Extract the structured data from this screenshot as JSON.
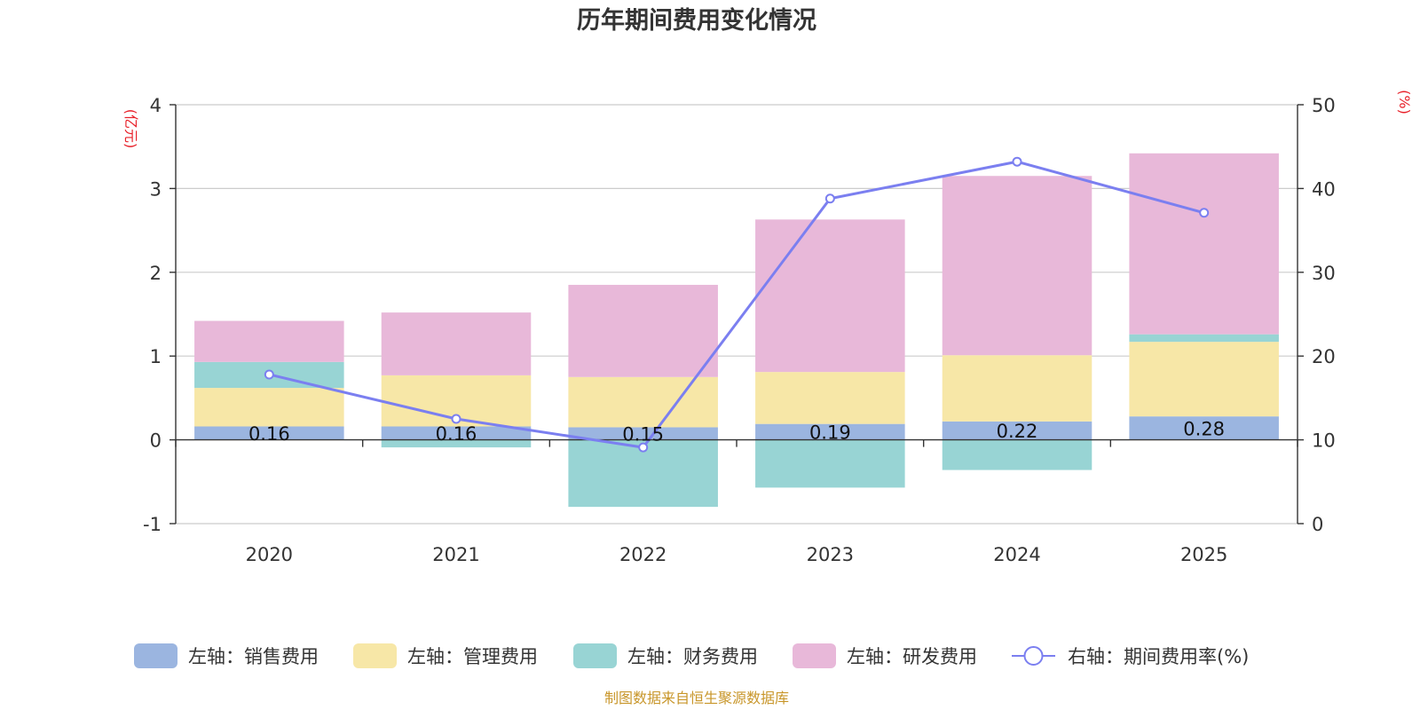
{
  "chart_data": {
    "type": "bar",
    "title": "历年期间费用变化情况",
    "categories": [
      "2020",
      "2021",
      "2022",
      "2023",
      "2024",
      "2025"
    ],
    "left_axis": {
      "unit_label": "(亿元)",
      "ylim": [
        -1,
        4
      ],
      "ticks": [
        "4",
        "3",
        "2",
        "1",
        "0",
        "-1"
      ],
      "tick_values": [
        4,
        3,
        2,
        1,
        0,
        -1
      ]
    },
    "right_axis": {
      "unit_label": "(%)",
      "ylim": [
        0,
        50
      ],
      "ticks": [
        "50",
        "40",
        "30",
        "20",
        "10",
        "0"
      ],
      "tick_values": [
        50,
        40,
        30,
        20,
        10,
        0
      ]
    },
    "series": [
      {
        "name": "左轴：销售费用",
        "type": "stacked-bar",
        "axis": "left",
        "color": "#9bb5e0",
        "values": [
          0.16,
          0.16,
          0.15,
          0.19,
          0.22,
          0.28
        ],
        "labels": [
          "0.16",
          "0.16",
          "0.15",
          "0.19",
          "0.22",
          "0.28"
        ]
      },
      {
        "name": "左轴：管理费用",
        "type": "stacked-bar",
        "axis": "left",
        "color": "#f7e7a7",
        "values": [
          0.46,
          0.61,
          0.6,
          0.62,
          0.79,
          0.89
        ]
      },
      {
        "name": "左轴：财务费用",
        "type": "stacked-bar",
        "axis": "left",
        "color": "#98d4d4",
        "values": [
          0.31,
          -0.09,
          -0.8,
          -0.57,
          -0.36,
          0.09
        ]
      },
      {
        "name": "左轴：研发费用",
        "type": "stacked-bar",
        "axis": "left",
        "color": "#e8b8d9",
        "values": [
          0.49,
          0.75,
          1.1,
          1.82,
          2.14,
          2.16
        ]
      },
      {
        "name": "右轴：期间费用率(%)",
        "type": "line",
        "axis": "right",
        "color": "#7b7ff0",
        "values": [
          17.8,
          12.5,
          9.1,
          38.8,
          43.2,
          37.1
        ]
      }
    ],
    "grid": true,
    "legend_position": "bottom"
  },
  "footer": {
    "source": "制图数据来自恒生聚源数据库"
  }
}
